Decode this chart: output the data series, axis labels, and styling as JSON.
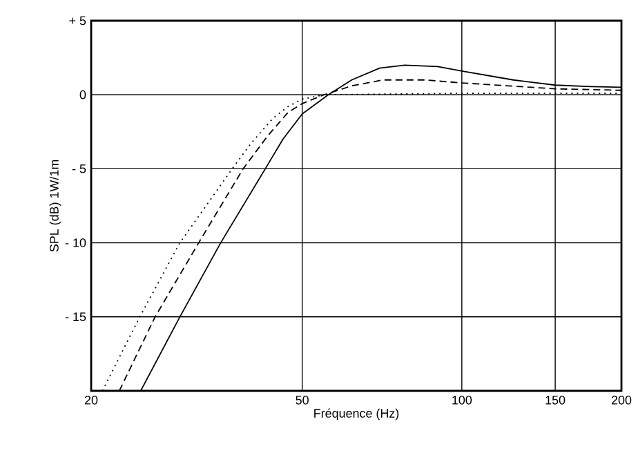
{
  "chart_data": {
    "type": "line",
    "xlabel": "Fréquence (Hz)",
    "ylabel": "SPL (dB) 1W/1m",
    "log": "x",
    "grid": true,
    "marker": "none",
    "xlim": [
      20,
      200
    ],
    "xticks": [
      20,
      50,
      100,
      150,
      200
    ],
    "ylim": [
      -20,
      5
    ],
    "yticks": [
      {
        "value": 5,
        "label": "+ 5"
      },
      0,
      {
        "value": -5,
        "label": "- 5"
      },
      {
        "value": -10,
        "label": "- 10"
      },
      {
        "value": -15,
        "label": "- 15"
      }
    ],
    "series": [
      {
        "color": "#000000",
        "line_style": "solid",
        "x": [
          24.8,
          29.4,
          35.1,
          42.6,
          46,
          50,
          56,
          62,
          70,
          78,
          90,
          100,
          125,
          150,
          175,
          200
        ],
        "values": [
          -20,
          -15,
          -10,
          -5,
          -3,
          -1.3,
          0,
          1,
          1.8,
          2,
          1.9,
          1.6,
          1,
          0.65,
          0.55,
          0.5
        ]
      },
      {
        "color": "#000000",
        "line_style": "dashed",
        "x": [
          22.6,
          26.4,
          31.9,
          38.7,
          43,
          47,
          50,
          55,
          62,
          71,
          85,
          100,
          150,
          200
        ],
        "values": [
          -20,
          -15,
          -10,
          -5,
          -2.8,
          -1.2,
          -0.6,
          0,
          0.6,
          1,
          1,
          0.8,
          0.4,
          0.3
        ]
      },
      {
        "color": "#000000",
        "line_style": "dotted",
        "x": [
          21,
          24.7,
          29.4,
          36.9,
          40,
          44,
          47,
          50,
          55,
          100,
          200
        ],
        "values": [
          -20,
          -15,
          -10,
          -5,
          -3.3,
          -1.6,
          -0.8,
          -0.3,
          0,
          0.1,
          0.1
        ]
      }
    ]
  }
}
